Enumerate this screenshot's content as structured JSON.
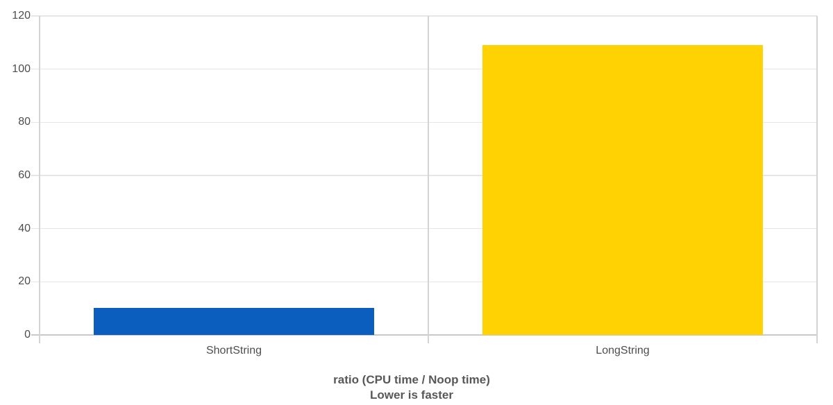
{
  "chart_data": {
    "type": "bar",
    "title": "",
    "categories": [
      "ShortString",
      "LongString"
    ],
    "values": [
      10.2,
      109
    ],
    "bar_colors": [
      "#0b5ebd",
      "#ffd303"
    ],
    "yticks": [
      0,
      20,
      40,
      60,
      80,
      100,
      120
    ],
    "ylim": [
      0,
      120
    ],
    "xlabel": "ratio (CPU time / Noop time) — Lower is faster",
    "ylabel": "",
    "legend": "none",
    "grid": "horizontal gridlines with vertical category dividers"
  },
  "caption": {
    "line1": "ratio (CPU time / Noop time)",
    "line2": "Lower is faster"
  },
  "colors": {
    "bar_shortstring": "#0b5ebd",
    "bar_longstring": "#ffd303",
    "gridline": "#e6e6e6",
    "baseline": "#c9c9c9",
    "divider": "#d4d4d4",
    "axis_label_text": "#4d4d4f",
    "caption_text": "#58585a",
    "background": "#ffffff"
  }
}
